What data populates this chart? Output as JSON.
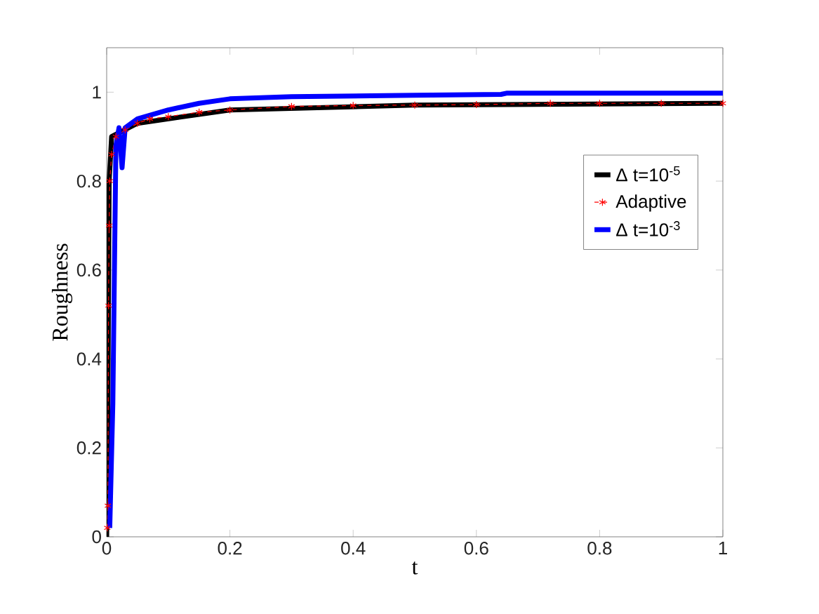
{
  "chart_data": {
    "type": "line",
    "xlabel": "t",
    "ylabel": "Roughness",
    "xlim": [
      0,
      1
    ],
    "ylim": [
      0,
      1.1
    ],
    "xticks": [
      0,
      0.2,
      0.4,
      0.6,
      0.8,
      1
    ],
    "yticks": [
      0,
      0.2,
      0.4,
      0.6,
      0.8,
      1
    ],
    "legend": "right",
    "series": [
      {
        "name": "Δ t=10$^{-5}$",
        "color": "#000000",
        "line_style": "solid",
        "marker": "none",
        "x": [
          0,
          0.002,
          0.004,
          0.008,
          0.05,
          0.2,
          0.5,
          1
        ],
        "values": [
          0,
          0.3,
          0.8,
          0.9,
          0.93,
          0.96,
          0.971,
          0.975
        ]
      },
      {
        "name": "Adaptive",
        "color": "#ff0000",
        "line_style": "dashed",
        "marker": "cross",
        "x": [
          0.001,
          0.002,
          0.003,
          0.004,
          0.005,
          0.008,
          0.015,
          0.03,
          0.05,
          0.07,
          0.1,
          0.15,
          0.2,
          0.3,
          0.4,
          0.5,
          0.6,
          0.72,
          0.8,
          0.9,
          1
        ],
        "values": [
          0.02,
          0.07,
          0.52,
          0.7,
          0.8,
          0.86,
          0.9,
          0.915,
          0.93,
          0.94,
          0.945,
          0.955,
          0.96,
          0.968,
          0.97,
          0.971,
          0.972,
          0.975,
          0.975,
          0.975,
          0.975
        ]
      },
      {
        "name": "Δ t=10$^{-3}$",
        "color": "#0000ff",
        "line_style": "solid",
        "marker": "none",
        "x": [
          0.005,
          0.01,
          0.015,
          0.02,
          0.025,
          0.03,
          0.05,
          0.1,
          0.15,
          0.2,
          0.3,
          0.5,
          0.64,
          0.65,
          1
        ],
        "values": [
          0.02,
          0.3,
          0.88,
          0.92,
          0.83,
          0.92,
          0.94,
          0.96,
          0.975,
          0.985,
          0.99,
          0.993,
          0.995,
          0.998,
          0.998
        ]
      }
    ]
  }
}
